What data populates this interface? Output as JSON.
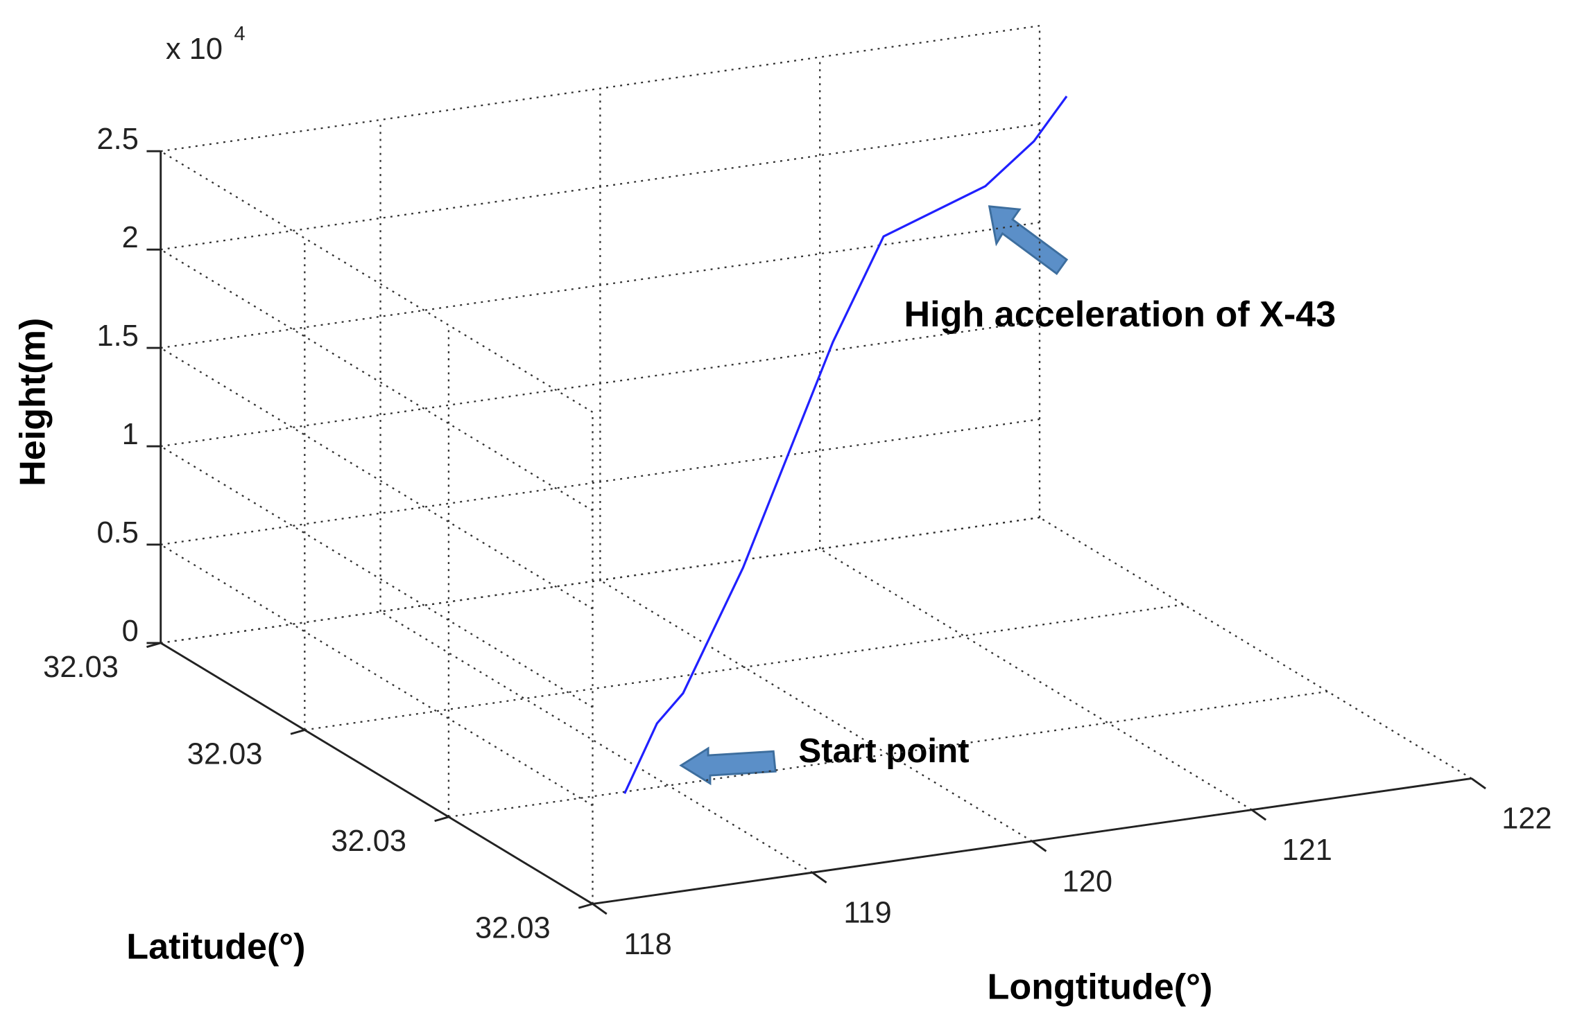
{
  "chart_data": {
    "type": "line3d",
    "xlabel": "Longtitude(°)",
    "ylabel": "Latitude(°)",
    "zlabel": "Height(m)",
    "z_multiplier": "x 10",
    "z_exponent": "4",
    "xlim": [
      118,
      122
    ],
    "xticks": [
      118,
      119,
      120,
      121,
      122
    ],
    "ylim": [
      32.0285,
      32.0315
    ],
    "yticks": [
      {
        "value": 32.0285,
        "label": "32.03"
      },
      {
        "value": 32.0295,
        "label": "32.03"
      },
      {
        "value": 32.0305,
        "label": "32.03"
      },
      {
        "value": 32.0315,
        "label": "32.03"
      }
    ],
    "zlim": [
      0,
      2.5
    ],
    "zticks": [
      0,
      0.5,
      1,
      1.5,
      2,
      2.5
    ],
    "grid": true,
    "series": [
      {
        "color": "#2020ff",
        "x": [
          118.79,
          119.03,
          119.19,
          119.63,
          120.34,
          120.71,
          121.24,
          121.52,
          121.73
        ],
        "y": [
          32.029484,
          32.029625,
          32.029688,
          32.029943,
          32.030402,
          32.030615,
          32.030717,
          32.030807,
          32.0309
        ],
        "z": [
          0,
          0.256,
          0.356,
          0.811,
          1.643,
          2.026,
          2.152,
          2.296,
          2.45
        ]
      }
    ],
    "annotations": [
      {
        "text": "High acceleration of X-43"
      },
      {
        "text": "Start point"
      }
    ]
  }
}
